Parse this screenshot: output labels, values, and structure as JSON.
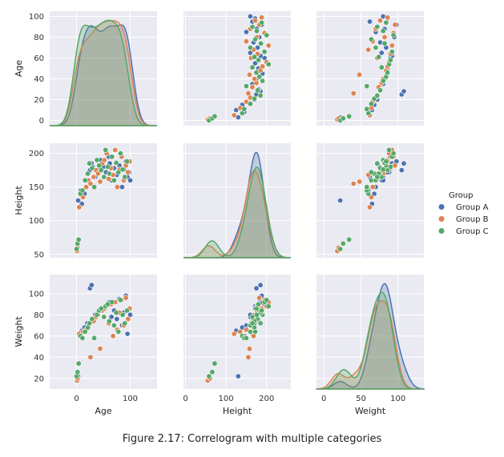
{
  "caption": "Figure 2.17: Correlogram with multiple categories",
  "colors": {
    "Group A": "#4c72b0",
    "Group B": "#dd8452",
    "Group C": "#55a868",
    "panel_bg": "#eaeaf2",
    "grid": "#ffffff"
  },
  "chart_data": {
    "type": "scatter",
    "variables": [
      "Age",
      "Height",
      "Weight"
    ],
    "hue_title": "Group",
    "groups": [
      "Group A",
      "Group B",
      "Group C"
    ],
    "legend_position": "right",
    "grid": true,
    "axes": {
      "Age": {
        "lim": [
          -50,
          150
        ],
        "ticks": [
          0,
          100
        ],
        "ylim": [
          -5,
          105
        ],
        "yticks": [
          0,
          20,
          40,
          60,
          80,
          100
        ]
      },
      "Height": {
        "lim": [
          -5,
          260
        ],
        "ticks": [
          0,
          100,
          200
        ],
        "ylim": [
          45,
          215
        ],
        "yticks": [
          50,
          100,
          150,
          200
        ]
      },
      "Weight": {
        "lim": [
          -10,
          135
        ],
        "ticks": [
          0,
          50,
          100
        ],
        "ylim": [
          10,
          118
        ],
        "yticks": [
          20,
          40,
          60,
          80,
          100
        ]
      }
    },
    "diagonal": "kde",
    "series": [
      {
        "name": "Group A",
        "points": [
          {
            "Age": 3,
            "Height": 130,
            "Weight": 22
          },
          {
            "Age": 8,
            "Height": 145,
            "Weight": 60
          },
          {
            "Age": 10,
            "Height": 125,
            "Weight": 65
          },
          {
            "Age": 15,
            "Height": 140,
            "Weight": 68
          },
          {
            "Age": 20,
            "Height": 170,
            "Weight": 72
          },
          {
            "Age": 25,
            "Height": 175,
            "Weight": 105
          },
          {
            "Age": 28,
            "Height": 185,
            "Weight": 108
          },
          {
            "Age": 30,
            "Height": 180,
            "Weight": 75
          },
          {
            "Age": 35,
            "Height": 165,
            "Weight": 80
          },
          {
            "Age": 40,
            "Height": 175,
            "Weight": 82
          },
          {
            "Age": 45,
            "Height": 190,
            "Weight": 85
          },
          {
            "Age": 50,
            "Height": 180,
            "Weight": 86
          },
          {
            "Age": 55,
            "Height": 172,
            "Weight": 88
          },
          {
            "Age": 60,
            "Height": 195,
            "Weight": 90
          },
          {
            "Age": 62,
            "Height": 185,
            "Weight": 92
          },
          {
            "Age": 65,
            "Height": 160,
            "Weight": 78
          },
          {
            "Age": 70,
            "Height": 178,
            "Weight": 84
          },
          {
            "Age": 75,
            "Height": 168,
            "Weight": 76
          },
          {
            "Age": 80,
            "Height": 182,
            "Weight": 95
          },
          {
            "Age": 85,
            "Height": 150,
            "Weight": 70
          },
          {
            "Age": 88,
            "Height": 176,
            "Weight": 82
          },
          {
            "Age": 92,
            "Height": 188,
            "Weight": 98
          },
          {
            "Age": 95,
            "Height": 165,
            "Weight": 62
          },
          {
            "Age": 98,
            "Height": 172,
            "Weight": 86
          },
          {
            "Age": 100,
            "Height": 160,
            "Weight": 80
          }
        ]
      },
      {
        "name": "Group B",
        "points": [
          {
            "Age": 1,
            "Height": 55,
            "Weight": 18
          },
          {
            "Age": 2,
            "Height": 60,
            "Weight": 20
          },
          {
            "Age": 5,
            "Height": 120,
            "Weight": 62
          },
          {
            "Age": 12,
            "Height": 135,
            "Weight": 64
          },
          {
            "Age": 18,
            "Height": 150,
            "Weight": 66
          },
          {
            "Age": 22,
            "Height": 160,
            "Weight": 70
          },
          {
            "Age": 26,
            "Height": 155,
            "Weight": 40
          },
          {
            "Age": 32,
            "Height": 165,
            "Weight": 74
          },
          {
            "Age": 36,
            "Height": 175,
            "Weight": 78
          },
          {
            "Age": 40,
            "Height": 170,
            "Weight": 80
          },
          {
            "Age": 44,
            "Height": 158,
            "Weight": 48
          },
          {
            "Age": 48,
            "Height": 185,
            "Weight": 84
          },
          {
            "Age": 52,
            "Height": 190,
            "Weight": 86
          },
          {
            "Age": 56,
            "Height": 200,
            "Weight": 88
          },
          {
            "Age": 60,
            "Height": 162,
            "Weight": 72
          },
          {
            "Age": 64,
            "Height": 178,
            "Weight": 90
          },
          {
            "Age": 68,
            "Height": 168,
            "Weight": 60
          },
          {
            "Age": 72,
            "Height": 205,
            "Weight": 92
          },
          {
            "Age": 76,
            "Height": 150,
            "Weight": 66
          },
          {
            "Age": 80,
            "Height": 176,
            "Weight": 82
          },
          {
            "Age": 84,
            "Height": 195,
            "Weight": 94
          },
          {
            "Age": 88,
            "Height": 160,
            "Weight": 70
          },
          {
            "Age": 92,
            "Height": 182,
            "Weight": 96
          },
          {
            "Age": 96,
            "Height": 172,
            "Weight": 76
          },
          {
            "Age": 99,
            "Height": 188,
            "Weight": 86
          }
        ]
      },
      {
        "name": "Group C",
        "points": [
          {
            "Age": 0,
            "Height": 58,
            "Weight": 22
          },
          {
            "Age": 2,
            "Height": 66,
            "Weight": 26
          },
          {
            "Age": 4,
            "Height": 72,
            "Weight": 34
          },
          {
            "Age": 7,
            "Height": 140,
            "Weight": 60
          },
          {
            "Age": 11,
            "Height": 145,
            "Weight": 58
          },
          {
            "Age": 16,
            "Height": 160,
            "Weight": 64
          },
          {
            "Age": 21,
            "Height": 170,
            "Weight": 68
          },
          {
            "Age": 24,
            "Height": 185,
            "Weight": 72
          },
          {
            "Age": 29,
            "Height": 178,
            "Weight": 76
          },
          {
            "Age": 33,
            "Height": 150,
            "Weight": 58
          },
          {
            "Age": 38,
            "Height": 190,
            "Weight": 80
          },
          {
            "Age": 42,
            "Height": 182,
            "Weight": 84
          },
          {
            "Age": 46,
            "Height": 175,
            "Weight": 86
          },
          {
            "Age": 51,
            "Height": 165,
            "Weight": 78
          },
          {
            "Age": 54,
            "Height": 205,
            "Weight": 88
          },
          {
            "Age": 58,
            "Height": 180,
            "Weight": 90
          },
          {
            "Age": 61,
            "Height": 170,
            "Weight": 74
          },
          {
            "Age": 66,
            "Height": 195,
            "Weight": 92
          },
          {
            "Age": 70,
            "Height": 160,
            "Weight": 70
          },
          {
            "Age": 74,
            "Height": 186,
            "Weight": 82
          },
          {
            "Age": 78,
            "Height": 172,
            "Weight": 64
          },
          {
            "Age": 82,
            "Height": 200,
            "Weight": 94
          },
          {
            "Age": 86,
            "Height": 176,
            "Weight": 80
          },
          {
            "Age": 90,
            "Height": 165,
            "Weight": 72
          },
          {
            "Age": 94,
            "Height": 188,
            "Weight": 84
          }
        ]
      }
    ]
  }
}
